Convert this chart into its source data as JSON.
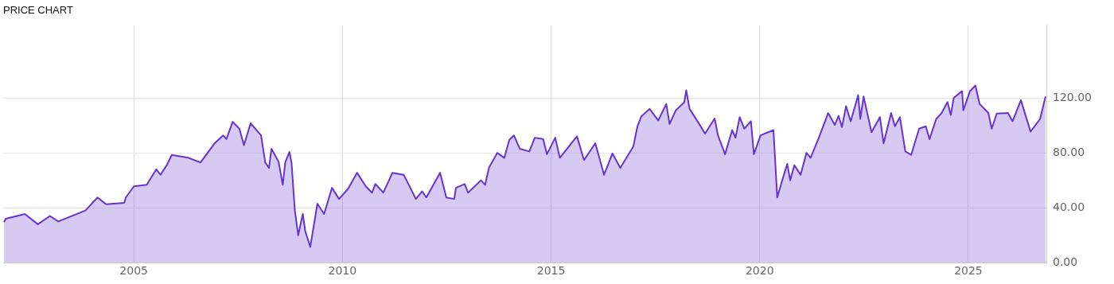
{
  "chart_data": {
    "type": "area",
    "title": "PRICE CHART",
    "xlim": [
      2001.87,
      2026.87
    ],
    "xticks": [
      2005,
      2010,
      2015,
      2020,
      2025
    ],
    "ylim": [
      0,
      173
    ],
    "yticks": [
      {
        "value": 0,
        "label": "0.00"
      },
      {
        "value": 40,
        "label": "40.00"
      },
      {
        "value": 80,
        "label": "80.00"
      },
      {
        "value": 120,
        "label": "120.00"
      }
    ],
    "grid": true,
    "legend": false,
    "series": [
      {
        "color": "#6633cc",
        "x": [
          2001.89,
          2001.93,
          2002.39,
          2002.7,
          2002.99,
          2003.19,
          2003.84,
          2004.13,
          2004.34,
          2004.77,
          2004.81,
          2005.0,
          2005.31,
          2005.54,
          2005.64,
          2005.79,
          2005.91,
          2006.31,
          2006.6,
          2006.93,
          2007.14,
          2007.22,
          2007.37,
          2007.53,
          2007.64,
          2007.8,
          2008.05,
          2008.15,
          2008.24,
          2008.3,
          2008.47,
          2008.57,
          2008.63,
          2008.73,
          2008.78,
          2008.86,
          2008.94,
          2009.05,
          2009.11,
          2009.23,
          2009.4,
          2009.56,
          2009.75,
          2009.92,
          2010.14,
          2010.35,
          2010.56,
          2010.71,
          2010.79,
          2010.98,
          2011.2,
          2011.47,
          2011.76,
          2011.91,
          2012.01,
          2012.34,
          2012.49,
          2012.68,
          2012.72,
          2012.93,
          2013.01,
          2013.32,
          2013.42,
          2013.51,
          2013.71,
          2013.88,
          2014.0,
          2014.11,
          2014.25,
          2014.48,
          2014.61,
          2014.81,
          2014.9,
          2015.1,
          2015.21,
          2015.62,
          2015.79,
          2016.06,
          2016.27,
          2016.47,
          2016.66,
          2016.97,
          2017.07,
          2017.16,
          2017.36,
          2017.57,
          2017.76,
          2017.84,
          2017.99,
          2018.19,
          2018.24,
          2018.32,
          2018.53,
          2018.69,
          2018.92,
          2019.0,
          2019.17,
          2019.34,
          2019.42,
          2019.52,
          2019.63,
          2019.79,
          2019.86,
          2020.02,
          2020.33,
          2020.42,
          2020.54,
          2020.66,
          2020.73,
          2020.83,
          2020.98,
          2021.12,
          2021.22,
          2021.43,
          2021.64,
          2021.8,
          2021.89,
          2021.97,
          2022.07,
          2022.18,
          2022.36,
          2022.41,
          2022.49,
          2022.68,
          2022.88,
          2022.97,
          2023.15,
          2023.24,
          2023.36,
          2023.49,
          2023.63,
          2023.82,
          2023.98,
          2024.07,
          2024.23,
          2024.36,
          2024.5,
          2024.58,
          2024.65,
          2024.85,
          2024.88,
          2025.04,
          2025.17,
          2025.27,
          2025.48,
          2025.56,
          2025.68,
          2025.95,
          2026.06,
          2026.26,
          2026.49,
          2026.72,
          2026.85
        ],
        "values": [
          29.5,
          32,
          35.5,
          28,
          34,
          30,
          38,
          47.5,
          42.5,
          43.6,
          47.5,
          55.6,
          56.7,
          68,
          64,
          71,
          78.5,
          76.4,
          73,
          86.7,
          92.7,
          90,
          102.6,
          97.6,
          85.6,
          101.5,
          92.7,
          73,
          69,
          83,
          73.6,
          56.7,
          73,
          80.7,
          73,
          38,
          20,
          35.5,
          23,
          11.5,
          43,
          35.5,
          54.5,
          46.4,
          54,
          65.5,
          55.6,
          51,
          57.3,
          51,
          65.5,
          64,
          46.4,
          52,
          47.5,
          65.5,
          47.5,
          46.4,
          54.5,
          57.3,
          51,
          60,
          56.7,
          69,
          80,
          76.4,
          89.5,
          92.7,
          83,
          81,
          91,
          90,
          79,
          91,
          76.4,
          92,
          74.7,
          87,
          64,
          79.6,
          69,
          84.5,
          99.3,
          106.4,
          112,
          103.6,
          115.6,
          101,
          111,
          116.7,
          125.5,
          112,
          102,
          94,
          105,
          92.7,
          79,
          96.6,
          91,
          106,
          97.6,
          103,
          79,
          92.7,
          96.6,
          47.5,
          60,
          72,
          60,
          71,
          64,
          80,
          76.4,
          92,
          109,
          100.4,
          107,
          98.7,
          114,
          103,
          122,
          104.7,
          121,
          95,
          106,
          87,
          109,
          99.3,
          106,
          81,
          78.5,
          97.6,
          99.3,
          90,
          104.7,
          109,
          117,
          107.5,
          120,
          125,
          111,
          125,
          129,
          115.6,
          109,
          97.6,
          108.6,
          109,
          103,
          118.4,
          95.5,
          104.7,
          121
        ]
      }
    ]
  }
}
